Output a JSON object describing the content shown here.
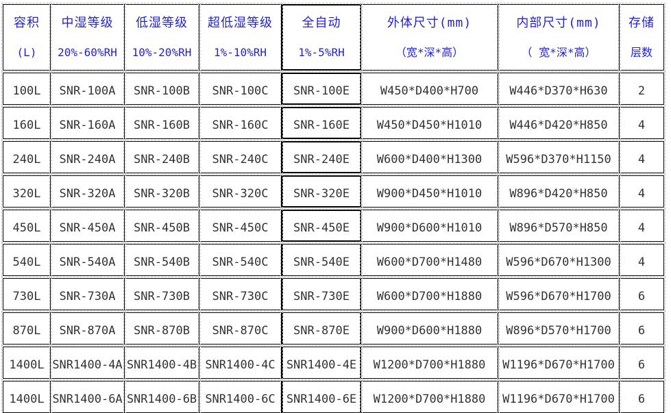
{
  "table": {
    "columns": [
      {
        "line1": "容积",
        "line2": "(L)"
      },
      {
        "line1": "中湿等级",
        "line2": "20%-60%RH"
      },
      {
        "line1": "低湿等级",
        "line2": "10%-20%RH"
      },
      {
        "line1": "超低湿等级",
        "line2": "1%-10%RH"
      },
      {
        "line1": "全自动",
        "line2": "1%-5%RH"
      },
      {
        "line1": "外体尺寸(mm)",
        "line2": "（宽*深*高）"
      },
      {
        "line1": "内部尺寸(mm)",
        "line2": "（ 宽*深*高）"
      },
      {
        "line1": "存储",
        "line2": "层数"
      }
    ],
    "rows": [
      [
        "100L",
        "SNR-100A",
        "SNR-100B",
        "SNR-100C",
        "SNR-100E",
        "W450*D400*H700",
        "W446*D370*H630",
        "2"
      ],
      [
        "160L",
        "SNR-160A",
        "SNR-160B",
        "SNR-160C",
        "SNR-160E",
        "W450*D450*H1010",
        "W446*D420*H850",
        "4"
      ],
      [
        "240L",
        "SNR-240A",
        "SNR-240B",
        "SNR-240C",
        "SNR-240E",
        "W600*D400*H1300",
        "W596*D370*H1150",
        "4"
      ],
      [
        "320L",
        "SNR-320A",
        "SNR-320B",
        "SNR-320C",
        "SNR-320E",
        "W900*D450*H1010",
        "W896*D420*H850",
        "4"
      ],
      [
        "450L",
        "SNR-450A",
        "SNR-450B",
        "SNR-450C",
        "SNR-450E",
        "W900*D600*H1010",
        "W896*D570*H850",
        "4"
      ],
      [
        "540L",
        "SNR-540A",
        "SNR-540B",
        "SNR-540C",
        "SNR-540E",
        "W600*D700*H1480",
        "W596*D670*H1300",
        "4"
      ],
      [
        "730L",
        "SNR-730A",
        "SNR-730B",
        "SNR-730C",
        "SNR-730E",
        "W600*D700*H1880",
        "W596*D670*H1700",
        "6"
      ],
      [
        "870L",
        "SNR-870A",
        "SNR-870B",
        "SNR-870C",
        "SNR-870E",
        "W900*D600*H1880",
        "W896*D570*H1700",
        "6"
      ],
      [
        "1400L",
        "SNR1400-4A",
        "SNR1400-4B",
        "SNR1400-4C",
        "SNR1400-4E",
        "W1200*D700*H1880",
        "W1196*D670*H1700",
        "6"
      ],
      [
        "1400L",
        "SNR1400-6A",
        "SNR1400-6B",
        "SNR1400-6C",
        "SNR1400-6E",
        "W1200*D700*H1880",
        "W1196*D670*H1700",
        "6"
      ]
    ],
    "colors": {
      "header_text": "#2323cf",
      "body_text": "#333333",
      "border": "#000000",
      "gridline": "#c6c6c6"
    },
    "bold_auto_column_rows": 5
  }
}
